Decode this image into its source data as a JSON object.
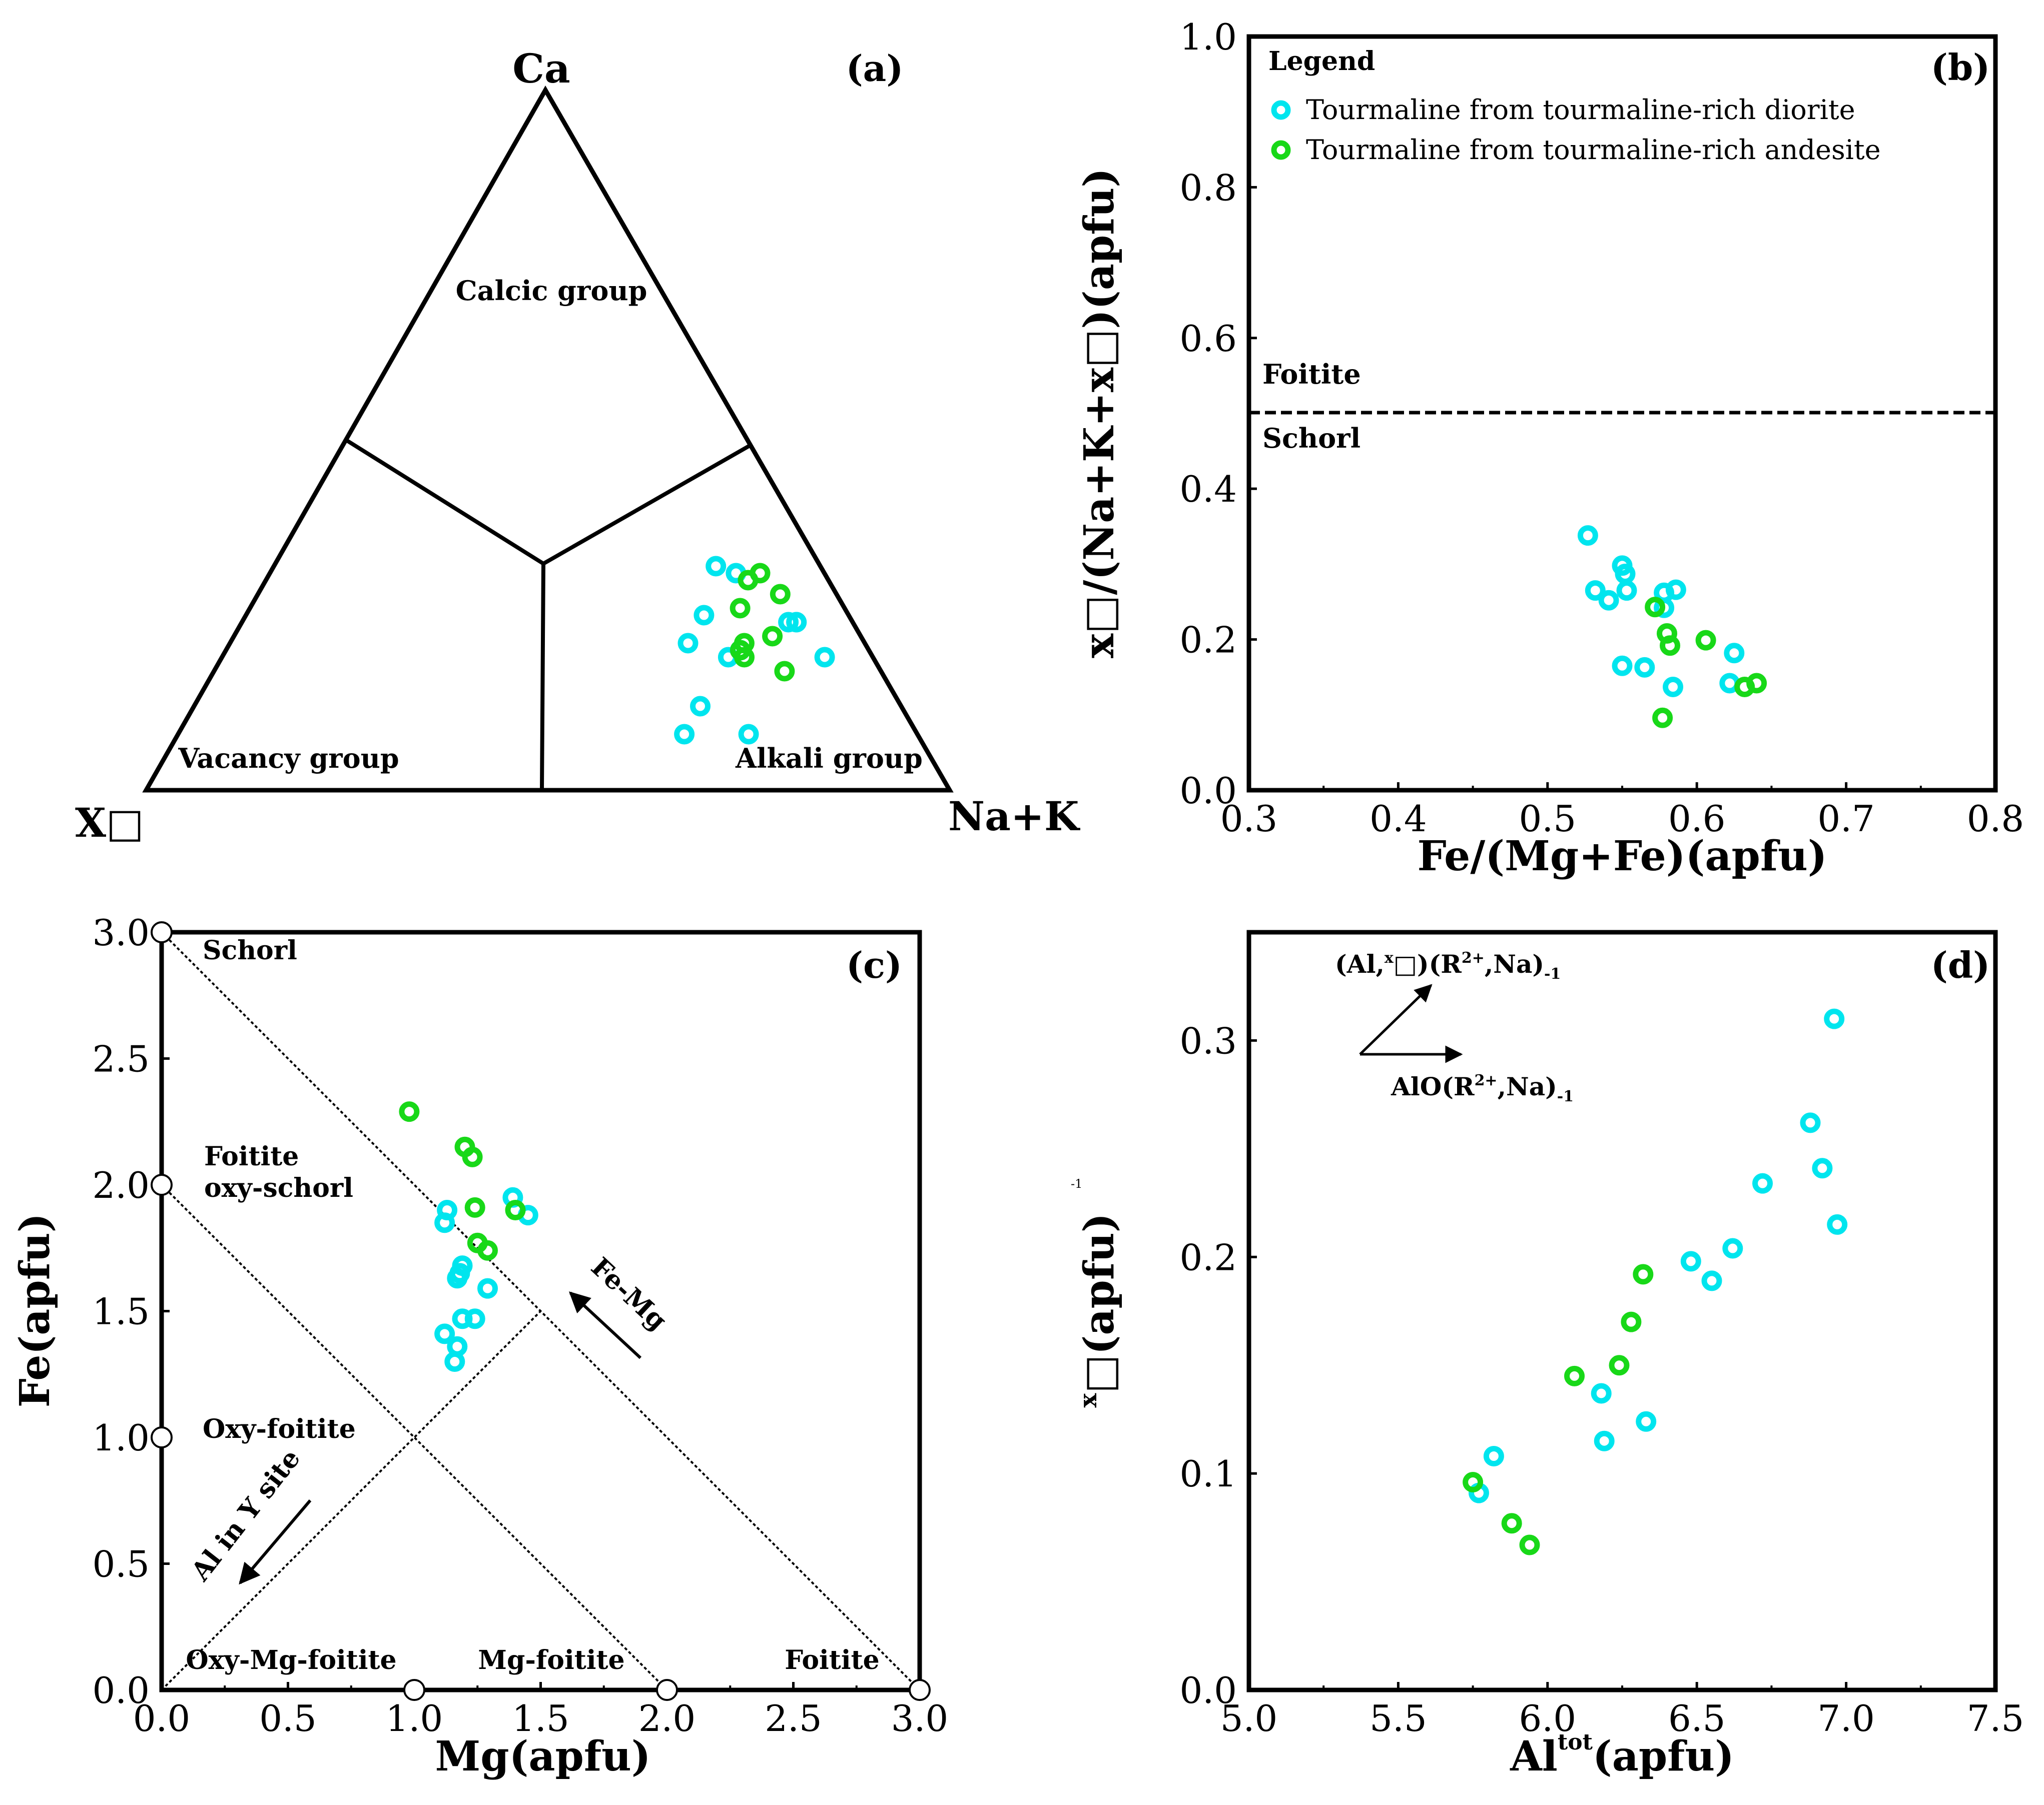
{
  "colors": {
    "diorite": "#00e5ee",
    "andesite": "#18d818",
    "axis": "#000000"
  },
  "chart_data": [
    {
      "id": "a",
      "type": "ternary",
      "panel_label": "(a)",
      "apex_labels": {
        "top": "Ca",
        "left": "X□",
        "right": "Na+K"
      },
      "field_labels": [
        "Calcic group",
        "Vacancy group",
        "Alkali group"
      ],
      "series": [
        {
          "name": "Tourmaline from tourmaline-rich diorite",
          "color": "#00e5ee",
          "points": [
            {
              "ca": 0.32,
              "x": 0.13
            },
            {
              "ca": 0.31,
              "x": 0.11
            },
            {
              "ca": 0.25,
              "x": 0.18
            },
            {
              "ca": 0.24,
              "x": 0.08
            },
            {
              "ca": 0.24,
              "x": 0.07
            },
            {
              "ca": 0.24,
              "x": 0.07
            },
            {
              "ca": 0.21,
              "x": 0.22
            },
            {
              "ca": 0.19,
              "x": 0.18
            },
            {
              "ca": 0.2,
              "x": 0.16
            },
            {
              "ca": 0.2,
              "x": 0.16
            },
            {
              "ca": 0.2,
              "x": 0.16
            },
            {
              "ca": 0.2,
              "x": 0.16
            },
            {
              "ca": 0.19,
              "x": 0.06
            },
            {
              "ca": 0.12,
              "x": 0.25
            },
            {
              "ca": 0.08,
              "x": 0.29
            },
            {
              "ca": 0.08,
              "x": 0.21
            }
          ]
        },
        {
          "name": "Tourmaline from tourmaline-rich andesite",
          "color": "#18d818",
          "points": [
            {
              "ca": 0.31,
              "x": 0.08
            },
            {
              "ca": 0.3,
              "x": 0.1
            },
            {
              "ca": 0.28,
              "x": 0.07
            },
            {
              "ca": 0.26,
              "x": 0.13
            },
            {
              "ca": 0.22,
              "x": 0.11
            },
            {
              "ca": 0.21,
              "x": 0.15
            },
            {
              "ca": 0.2,
              "x": 0.16
            },
            {
              "ca": 0.19,
              "x": 0.16
            },
            {
              "ca": 0.17,
              "x": 0.12
            }
          ]
        }
      ]
    },
    {
      "id": "b",
      "type": "scatter",
      "panel_label": "(b)",
      "xlabel": "Fe/(Mg+Fe)(apfu)",
      "ylabel": "x□/(Na+K+x□)(apfu)",
      "xlim": [
        0.3,
        0.8
      ],
      "ylim": [
        0.0,
        1.0
      ],
      "xticks": [
        "0.3",
        "0.4",
        "0.5",
        "0.6",
        "0.7",
        "0.8"
      ],
      "yticks": [
        "0.0",
        "0.2",
        "0.4",
        "0.6",
        "0.8",
        "1.0"
      ],
      "legend": {
        "title": "Legend",
        "placement": "top-left"
      },
      "reference_line": {
        "y": 0.5,
        "label_above": "Foitite",
        "label_below": "Schorl"
      },
      "series": [
        {
          "name": "Tourmaline from tourmaline-rich diorite",
          "color": "#00e5ee",
          "x": [
            0.527,
            0.55,
            0.552,
            0.532,
            0.541,
            0.553,
            0.578,
            0.586,
            0.55,
            0.565,
            0.584,
            0.625,
            0.622,
            0.578
          ],
          "y": [
            0.338,
            0.298,
            0.287,
            0.265,
            0.252,
            0.265,
            0.242,
            0.266,
            0.165,
            0.163,
            0.137,
            0.182,
            0.142,
            0.262
          ]
        },
        {
          "name": "Tourmaline from tourmaline-rich andesite",
          "color": "#18d818",
          "x": [
            0.572,
            0.58,
            0.582,
            0.606,
            0.632,
            0.64,
            0.577
          ],
          "y": [
            0.243,
            0.208,
            0.192,
            0.199,
            0.137,
            0.142,
            0.096
          ]
        }
      ]
    },
    {
      "id": "c",
      "type": "scatter",
      "panel_label": "(c)",
      "xlabel": "Mg(apfu)",
      "ylabel": "Fe(apfu)",
      "xlim": [
        0.0,
        3.0
      ],
      "ylim": [
        0.0,
        3.0
      ],
      "xticks": [
        "0.0",
        "0.5",
        "1.0",
        "1.5",
        "2.0",
        "2.5",
        "3.0"
      ],
      "yticks": [
        "0.0",
        "0.5",
        "1.0",
        "1.5",
        "2.0",
        "2.5",
        "3.0"
      ],
      "field_labels": [
        "Schorl",
        "Foitite",
        "oxy-schorl",
        "Oxy-foitite",
        "Oxy-Mg-foitite",
        "Mg-foitite",
        "Foitite"
      ],
      "vector_labels": [
        "Fe-Mg",
        "Al in Y site"
      ],
      "reference_lines": [
        {
          "from": [
            0,
            3
          ],
          "to": [
            3,
            0
          ]
        },
        {
          "from": [
            0,
            2
          ],
          "to": [
            2,
            0
          ]
        },
        {
          "from": [
            0,
            0
          ],
          "to": [
            1.5,
            1.5
          ]
        }
      ],
      "end_members": [
        [
          0,
          3
        ],
        [
          0,
          2
        ],
        [
          0,
          1
        ],
        [
          1,
          0
        ],
        [
          2,
          0
        ],
        [
          3,
          0
        ]
      ],
      "series": [
        {
          "name": "Tourmaline from tourmaline-rich diorite",
          "color": "#00e5ee",
          "x": [
            1.13,
            1.12,
            1.39,
            1.45,
            1.19,
            1.18,
            1.17,
            1.29,
            1.19,
            1.24,
            1.12,
            1.17,
            1.16
          ],
          "y": [
            1.9,
            1.85,
            1.95,
            1.88,
            1.68,
            1.65,
            1.63,
            1.59,
            1.47,
            1.47,
            1.41,
            1.36,
            1.3
          ]
        },
        {
          "name": "Tourmaline from tourmaline-rich andesite",
          "color": "#18d818",
          "x": [
            0.98,
            1.2,
            1.23,
            1.24,
            1.4,
            1.25,
            1.29
          ],
          "y": [
            2.29,
            2.15,
            2.11,
            1.91,
            1.9,
            1.77,
            1.74
          ]
        }
      ]
    },
    {
      "id": "d",
      "type": "scatter",
      "panel_label": "(d)",
      "xlabel": "Al tot (apfu)",
      "ylabel": "x□(apfu)",
      "stray_label": "-1",
      "xlim": [
        5.0,
        7.5
      ],
      "ylim": [
        0.0,
        0.35
      ],
      "xticks": [
        "5.0",
        "5.5",
        "6.0",
        "6.5",
        "7.0",
        "7.5"
      ],
      "yticks": [
        "0.0",
        "0.1",
        "0.2",
        "0.3"
      ],
      "vector_labels": [
        "(Al,x□)(R2+,Na)-1",
        "AlO(R2+,Na)-1"
      ],
      "series": [
        {
          "name": "Tourmaline from tourmaline-rich diorite",
          "color": "#00e5ee",
          "x": [
            6.96,
            6.88,
            6.92,
            6.97,
            6.72,
            6.62,
            6.48,
            6.55,
            6.18,
            6.33,
            6.19,
            5.82,
            5.77
          ],
          "y": [
            0.31,
            0.262,
            0.241,
            0.215,
            0.234,
            0.204,
            0.198,
            0.189,
            0.137,
            0.124,
            0.115,
            0.108,
            0.091
          ]
        },
        {
          "name": "Tourmaline from tourmaline-rich andesite",
          "color": "#18d818",
          "x": [
            6.32,
            6.28,
            6.09,
            6.24,
            5.75,
            5.88,
            5.94
          ],
          "y": [
            0.192,
            0.17,
            0.145,
            0.15,
            0.096,
            0.077,
            0.067
          ]
        }
      ]
    }
  ]
}
